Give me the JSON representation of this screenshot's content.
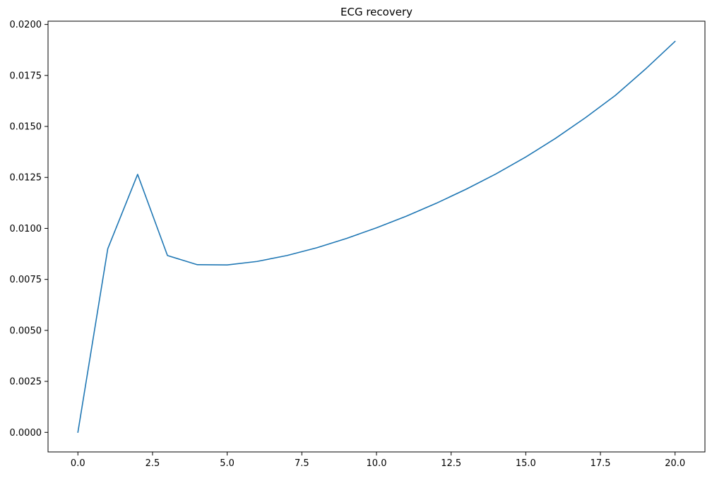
{
  "chart_data": {
    "type": "line",
    "title": "ECG recovery",
    "xlabel": "",
    "ylabel": "",
    "xlim": [
      -1.0,
      21.0
    ],
    "ylim": [
      -0.00096,
      0.02016
    ],
    "x_ticks": [
      0.0,
      2.5,
      5.0,
      7.5,
      10.0,
      12.5,
      15.0,
      17.5,
      20.0
    ],
    "x_tick_labels": [
      "0.0",
      "2.5",
      "5.0",
      "7.5",
      "10.0",
      "12.5",
      "15.0",
      "17.5",
      "20.0"
    ],
    "y_ticks": [
      0.0,
      0.0025,
      0.005,
      0.0075,
      0.01,
      0.0125,
      0.015,
      0.0175,
      0.02
    ],
    "y_tick_labels": [
      "0.0000",
      "0.0025",
      "0.0050",
      "0.0075",
      "0.0100",
      "0.0125",
      "0.0150",
      "0.0175",
      "0.0200"
    ],
    "grid": false,
    "legend": "none",
    "series": [
      {
        "color": "#1f77b4",
        "x": [
          0,
          1,
          2,
          3,
          4,
          5,
          6,
          7,
          8,
          9,
          10,
          11,
          12,
          13,
          14,
          15,
          16,
          17,
          18,
          19,
          20
        ],
        "values": [
          0.0,
          0.009,
          0.01265,
          0.00867,
          0.00822,
          0.00821,
          0.00838,
          0.00867,
          0.00905,
          0.00951,
          0.01003,
          0.0106,
          0.01123,
          0.01192,
          0.01267,
          0.0135,
          0.01442,
          0.01543,
          0.01652,
          0.0178,
          0.01917
        ]
      }
    ]
  }
}
